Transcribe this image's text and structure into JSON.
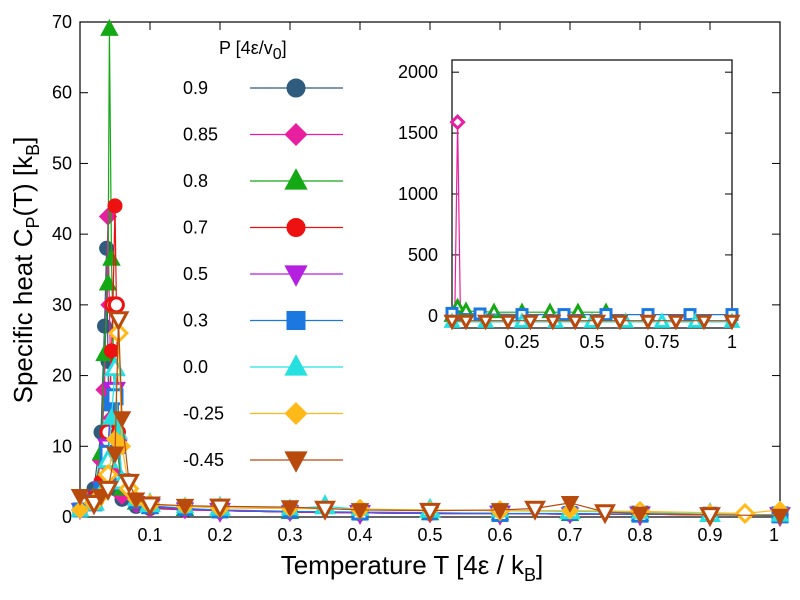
{
  "chart_data": {
    "type": "line",
    "title": "",
    "xlabel": "Temperature T [4ε / k",
    "xlabel_sub": "B",
    "xlabel_end": "]",
    "ylabel": "Specific heat C",
    "ylabel_sub1": "P",
    "ylabel_mid": "(T) [k",
    "ylabel_sub2": "B",
    "ylabel_end": "]",
    "xlim": [
      0,
      1
    ],
    "ylim": [
      0,
      70
    ],
    "xticks": [
      0.1,
      0.2,
      0.3,
      0.4,
      0.5,
      0.6,
      0.7,
      0.8,
      0.9,
      1
    ],
    "xtick_labels": [
      "0.1",
      "0.2",
      "0.3",
      "0.4",
      "0.5",
      "0.6",
      "0.7",
      "0.8",
      "0.9",
      "1"
    ],
    "yticks": [
      0,
      10,
      20,
      30,
      40,
      50,
      60,
      70
    ],
    "ytick_labels": [
      "0",
      "10",
      "20",
      "30",
      "40",
      "50",
      "60",
      "70"
    ],
    "legend_title": "P [4ε/v",
    "legend_title_sub": "0",
    "legend_title_end": "]",
    "series": [
      {
        "name": "0.9",
        "color": "#2f5b7d",
        "marker": "circle",
        "filled": true,
        "x": [
          0.0,
          0.02,
          0.03,
          0.035,
          0.038,
          0.04,
          0.042,
          0.045,
          0.05,
          0.06,
          0.08,
          0.1,
          0.15,
          0.2,
          0.3,
          0.4,
          0.5,
          0.6,
          0.7,
          0.8,
          0.9,
          1.0
        ],
        "y": [
          1,
          4,
          12,
          27,
          38,
          22,
          10,
          6,
          4,
          2.5,
          1.5,
          1.2,
          1,
          0.9,
          0.7,
          0.6,
          0.5,
          0.5,
          0.4,
          0.4,
          0.3,
          0.3
        ]
      },
      {
        "name": "0.85",
        "color": "#e81fa0",
        "marker": "diamond",
        "filled": true,
        "x": [
          0.0,
          0.02,
          0.03,
          0.035,
          0.04,
          0.042,
          0.045,
          0.05,
          0.06,
          0.08,
          0.1,
          0.15,
          0.2,
          0.3,
          0.4,
          0.5,
          0.6,
          0.7,
          0.8,
          0.9,
          1.0
        ],
        "y": [
          1,
          3,
          8,
          18,
          42.5,
          30,
          14,
          6,
          3,
          1.8,
          1.3,
          1,
          0.9,
          0.7,
          0.6,
          0.5,
          0.5,
          0.4,
          0.4,
          0.3,
          0.3
        ]
      },
      {
        "name": "0.8",
        "color": "#15a815",
        "marker": "triangle-up",
        "filled": true,
        "x": [
          0.0,
          0.02,
          0.03,
          0.035,
          0.04,
          0.042,
          0.045,
          0.05,
          0.06,
          0.08,
          0.1,
          0.15,
          0.2,
          0.3,
          0.4,
          0.5,
          0.6,
          0.7,
          0.8,
          0.9,
          1.0
        ],
        "y": [
          1,
          3,
          9,
          23,
          33,
          69,
          36.5,
          12,
          4,
          2,
          1.4,
          1.1,
          0.9,
          0.7,
          0.6,
          0.5,
          0.5,
          0.4,
          0.4,
          0.3,
          0.3
        ]
      },
      {
        "name": "0.7",
        "color": "#ee1111",
        "marker": "circle",
        "filled": true,
        "x": [
          0.0,
          0.02,
          0.03,
          0.04,
          0.045,
          0.047,
          0.05,
          0.052,
          0.055,
          0.06,
          0.08,
          0.1,
          0.15,
          0.2,
          0.3,
          0.4,
          0.5,
          0.6,
          0.7,
          0.8,
          0.9,
          1.0
        ],
        "y": [
          1,
          2.5,
          5,
          12,
          23.5,
          30,
          44,
          30,
          12,
          5,
          2,
          1.4,
          1.1,
          0.9,
          0.7,
          0.6,
          0.5,
          0.5,
          0.4,
          0.4,
          0.3,
          0.3
        ]
      },
      {
        "name": "0.5",
        "color": "#b51fe0",
        "marker": "triangle-down",
        "filled": true,
        "x": [
          0.0,
          0.02,
          0.03,
          0.04,
          0.045,
          0.05,
          0.055,
          0.06,
          0.08,
          0.1,
          0.15,
          0.2,
          0.3,
          0.4,
          0.5,
          0.6,
          0.7,
          0.8,
          0.9,
          1.0
        ],
        "y": [
          1,
          2,
          4,
          10,
          18,
          18,
          10,
          5,
          2,
          1.5,
          1.1,
          0.9,
          0.7,
          0.6,
          0.5,
          0.5,
          0.4,
          0.4,
          0.3,
          0.3
        ]
      },
      {
        "name": "0.3",
        "color": "#1a78e0",
        "marker": "square",
        "filled": true,
        "x": [
          0.0,
          0.02,
          0.03,
          0.04,
          0.045,
          0.05,
          0.055,
          0.06,
          0.08,
          0.1,
          0.15,
          0.2,
          0.3,
          0.4,
          0.5,
          0.6,
          0.7,
          0.8,
          0.9,
          1.0
        ],
        "y": [
          1,
          2,
          4,
          9,
          16,
          17,
          10,
          5,
          2.2,
          1.6,
          1.2,
          1,
          0.8,
          0.7,
          0.6,
          0.5,
          0.5,
          0.4,
          0.4,
          0.3
        ]
      },
      {
        "name": "0.0",
        "color": "#26e0e0",
        "marker": "triangle-up",
        "filled": true,
        "x": [
          0.0,
          0.02,
          0.03,
          0.04,
          0.045,
          0.05,
          0.055,
          0.06,
          0.08,
          0.1,
          0.15,
          0.2,
          0.3,
          0.35,
          0.4,
          0.5,
          0.6,
          0.7,
          0.8,
          0.9,
          1.0
        ],
        "y": [
          1,
          2,
          3.5,
          8,
          14,
          21,
          12,
          5,
          2.5,
          1.8,
          1.5,
          1.3,
          1.2,
          1.5,
          1.1,
          1,
          0.9,
          0.8,
          0.7,
          0.4,
          0.3
        ]
      },
      {
        "name": "-0.25",
        "color": "#ffba1a",
        "marker": "diamond",
        "filled": true,
        "x": [
          0.0,
          0.02,
          0.03,
          0.04,
          0.05,
          0.055,
          0.06,
          0.07,
          0.08,
          0.1,
          0.15,
          0.2,
          0.3,
          0.4,
          0.5,
          0.6,
          0.7,
          0.8,
          0.9,
          0.95,
          1.0
        ],
        "y": [
          1,
          2,
          3,
          6,
          11,
          26,
          10,
          4,
          2.5,
          1.8,
          1.5,
          1.3,
          1.2,
          1.1,
          1,
          0.9,
          0.9,
          0.8,
          0.6,
          0.5,
          1
        ]
      },
      {
        "name": "-0.45",
        "color": "#b84a0e",
        "marker": "triangle-down",
        "filled": true,
        "x": [
          0.0,
          0.02,
          0.03,
          0.04,
          0.05,
          0.055,
          0.06,
          0.07,
          0.08,
          0.1,
          0.15,
          0.2,
          0.3,
          0.35,
          0.4,
          0.5,
          0.6,
          0.65,
          0.7,
          0.75,
          0.8,
          0.9,
          1.0
        ],
        "y": [
          3,
          2,
          3,
          4,
          9,
          28,
          14,
          5,
          2.5,
          1.8,
          1.6,
          1.5,
          1.4,
          1.2,
          1,
          0.9,
          1,
          1.2,
          2,
          0.7,
          0.5,
          0.3,
          0.2
        ]
      }
    ],
    "inset": {
      "xlim": [
        0,
        1
      ],
      "ylim": [
        -100,
        2100
      ],
      "xticks": [
        0.25,
        0.5,
        0.75,
        1
      ],
      "xtick_labels": [
        "0.25",
        "0.5",
        "0.75",
        "1"
      ],
      "yticks": [
        0,
        500,
        1000,
        1500,
        2000
      ],
      "ytick_labels": [
        "0",
        "500",
        "1000",
        "1500",
        "2000"
      ],
      "series": [
        {
          "name": "0.85",
          "color": "#e81fa0",
          "marker": "diamond",
          "x": [
            0.0,
            0.01,
            0.02,
            0.03
          ],
          "y": [
            0,
            20,
            1590,
            20
          ]
        },
        {
          "name": "0.8",
          "color": "#15a815",
          "marker": "triangle-up",
          "x": [
            0.0,
            0.02,
            0.05,
            0.15,
            0.25,
            0.35,
            0.45,
            0.55
          ],
          "y": [
            0,
            70,
            40,
            30,
            30,
            30,
            30,
            30
          ]
        },
        {
          "name": "0.3",
          "color": "#1a78e0",
          "marker": "square",
          "x": [
            0.0,
            0.1,
            0.25,
            0.4,
            0.55,
            0.7,
            0.85,
            1.0
          ],
          "y": [
            20,
            15,
            10,
            10,
            10,
            10,
            10,
            10
          ]
        },
        {
          "name": "0.0",
          "color": "#26e0e0",
          "marker": "triangle-up",
          "x": [
            0.0,
            0.12,
            0.25,
            0.37,
            0.5,
            0.62,
            0.75,
            0.87,
            1.0
          ],
          "y": [
            -50,
            -50,
            -50,
            -50,
            -50,
            -50,
            -50,
            -50,
            -50
          ]
        },
        {
          "name": "-0.45",
          "color": "#b84a0e",
          "marker": "triangle-down",
          "x": [
            0.0,
            0.05,
            0.12,
            0.2,
            0.28,
            0.36,
            0.44,
            0.52,
            0.6,
            0.7,
            0.8,
            0.9,
            1.0
          ],
          "y": [
            -40,
            -40,
            -40,
            -40,
            -40,
            -40,
            -40,
            -40,
            -40,
            -40,
            -40,
            -40,
            -40
          ]
        }
      ]
    }
  }
}
